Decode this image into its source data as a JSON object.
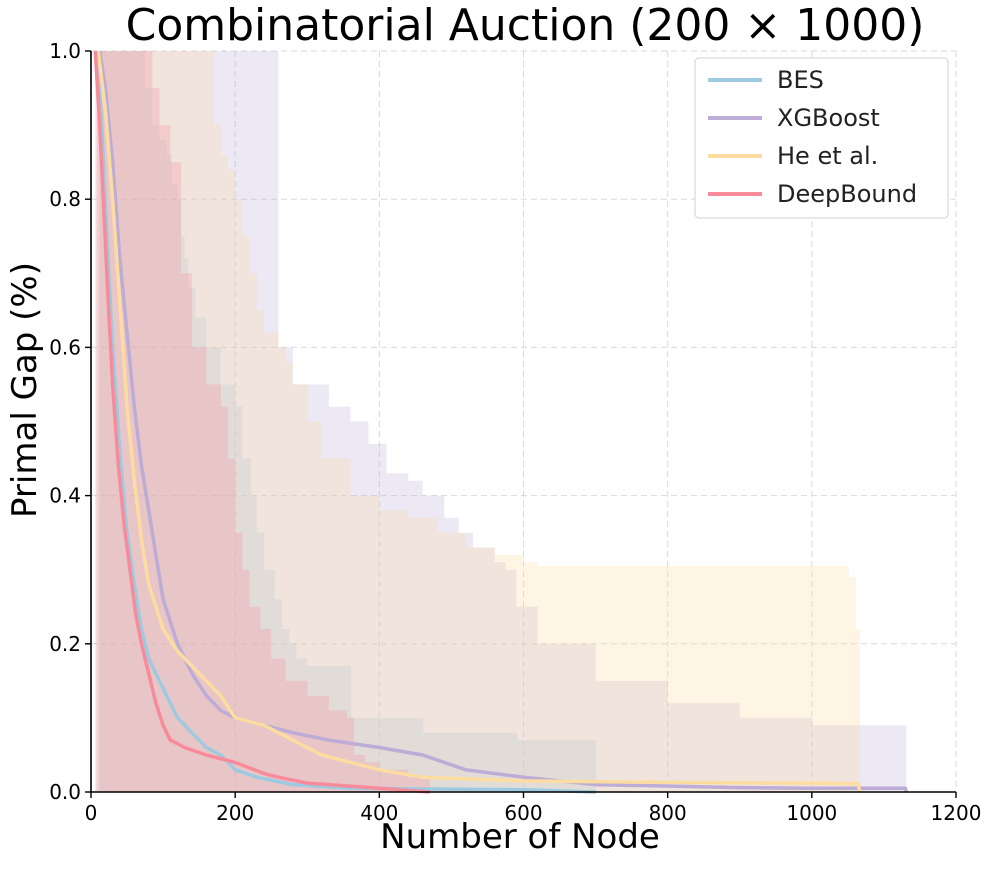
{
  "chart_data": {
    "type": "line",
    "title": "Combinatorial Auction (200 × 1000)",
    "xlabel": "Number of Node",
    "ylabel": "Primal Gap (%)",
    "xlim": [
      0,
      1200
    ],
    "ylim": [
      0,
      1.0
    ],
    "x_ticks": [
      0,
      200,
      400,
      600,
      800,
      1000,
      1200
    ],
    "x_tick_labels": [
      "0",
      "200",
      "400",
      "600",
      "800",
      "1000",
      "1200"
    ],
    "y_ticks": [
      0.0,
      0.2,
      0.4,
      0.6,
      0.8,
      1.0
    ],
    "y_tick_labels": [
      "0.0",
      "0.2",
      "0.4",
      "0.6",
      "0.8",
      "1.0"
    ],
    "grid": true,
    "legend_position": "top-right",
    "series": [
      {
        "name": "BES",
        "color": "#9ecae1",
        "line": [
          [
            8,
            1.0
          ],
          [
            15,
            0.9
          ],
          [
            22,
            0.75
          ],
          [
            30,
            0.6
          ],
          [
            40,
            0.46
          ],
          [
            50,
            0.35
          ],
          [
            60,
            0.28
          ],
          [
            70,
            0.22
          ],
          [
            80,
            0.18
          ],
          [
            100,
            0.14
          ],
          [
            120,
            0.1
          ],
          [
            140,
            0.08
          ],
          [
            160,
            0.06
          ],
          [
            180,
            0.05
          ],
          [
            200,
            0.03
          ],
          [
            230,
            0.02
          ],
          [
            280,
            0.01
          ],
          [
            360,
            0.005
          ],
          [
            600,
            0.003
          ],
          [
            700,
            0.0
          ]
        ],
        "band_upper": [
          [
            8,
            1.0
          ],
          [
            70,
            1.0
          ],
          [
            75,
            0.95
          ],
          [
            85,
            0.9
          ],
          [
            95,
            0.88
          ],
          [
            105,
            0.86
          ],
          [
            112,
            0.82
          ],
          [
            120,
            0.8
          ],
          [
            125,
            0.75
          ],
          [
            130,
            0.72
          ],
          [
            135,
            0.68
          ],
          [
            145,
            0.64
          ],
          [
            160,
            0.6
          ],
          [
            180,
            0.55
          ],
          [
            200,
            0.52
          ],
          [
            210,
            0.45
          ],
          [
            222,
            0.4
          ],
          [
            230,
            0.35
          ],
          [
            240,
            0.3
          ],
          [
            255,
            0.26
          ],
          [
            265,
            0.22
          ],
          [
            275,
            0.2
          ],
          [
            285,
            0.18
          ],
          [
            300,
            0.17
          ],
          [
            360,
            0.17
          ],
          [
            361,
            0.1
          ],
          [
            460,
            0.1
          ],
          [
            461,
            0.08
          ],
          [
            590,
            0.08
          ],
          [
            591,
            0.07
          ],
          [
            700,
            0.07
          ],
          [
            701,
            0.0
          ]
        ],
        "band_lower": [
          [
            8,
            0.0
          ],
          [
            700,
            0.0
          ]
        ]
      },
      {
        "name": "XGBoost",
        "color": "#bcacd6",
        "line": [
          [
            12,
            1.0
          ],
          [
            20,
            0.95
          ],
          [
            30,
            0.85
          ],
          [
            40,
            0.72
          ],
          [
            50,
            0.62
          ],
          [
            60,
            0.52
          ],
          [
            70,
            0.44
          ],
          [
            80,
            0.38
          ],
          [
            90,
            0.32
          ],
          [
            100,
            0.26
          ],
          [
            120,
            0.2
          ],
          [
            140,
            0.16
          ],
          [
            160,
            0.13
          ],
          [
            180,
            0.11
          ],
          [
            200,
            0.1
          ],
          [
            240,
            0.09
          ],
          [
            280,
            0.08
          ],
          [
            330,
            0.07
          ],
          [
            400,
            0.06
          ],
          [
            460,
            0.05
          ],
          [
            520,
            0.03
          ],
          [
            600,
            0.02
          ],
          [
            700,
            0.01
          ],
          [
            900,
            0.006
          ],
          [
            1000,
            0.005
          ],
          [
            1130,
            0.005
          ],
          [
            1131,
            0.0
          ]
        ],
        "band_upper": [
          [
            12,
            1.0
          ],
          [
            240,
            1.0
          ],
          [
            260,
            0.6
          ],
          [
            280,
            0.55
          ],
          [
            330,
            0.52
          ],
          [
            360,
            0.5
          ],
          [
            385,
            0.47
          ],
          [
            410,
            0.43
          ],
          [
            440,
            0.42
          ],
          [
            460,
            0.4
          ],
          [
            490,
            0.37
          ],
          [
            510,
            0.35
          ],
          [
            530,
            0.33
          ],
          [
            560,
            0.31
          ],
          [
            575,
            0.3
          ],
          [
            590,
            0.25
          ],
          [
            620,
            0.2
          ],
          [
            700,
            0.15
          ],
          [
            800,
            0.12
          ],
          [
            900,
            0.1
          ],
          [
            1000,
            0.09
          ],
          [
            1130,
            0.09
          ],
          [
            1131,
            0.0
          ]
        ],
        "band_lower": [
          [
            12,
            0.0
          ],
          [
            1131,
            0.0
          ]
        ]
      },
      {
        "name": "He et al.",
        "color": "#fddca2",
        "line": [
          [
            10,
            1.0
          ],
          [
            20,
            0.92
          ],
          [
            30,
            0.8
          ],
          [
            40,
            0.66
          ],
          [
            50,
            0.52
          ],
          [
            60,
            0.42
          ],
          [
            70,
            0.34
          ],
          [
            80,
            0.28
          ],
          [
            100,
            0.22
          ],
          [
            120,
            0.19
          ],
          [
            140,
            0.17
          ],
          [
            160,
            0.15
          ],
          [
            180,
            0.13
          ],
          [
            200,
            0.1
          ],
          [
            240,
            0.09
          ],
          [
            280,
            0.07
          ],
          [
            320,
            0.05
          ],
          [
            360,
            0.04
          ],
          [
            400,
            0.03
          ],
          [
            460,
            0.02
          ],
          [
            600,
            0.015
          ],
          [
            800,
            0.013
          ],
          [
            1000,
            0.012
          ],
          [
            1065,
            0.011
          ],
          [
            1066,
            0.0
          ]
        ],
        "band_upper": [
          [
            10,
            1.0
          ],
          [
            160,
            1.0
          ],
          [
            170,
            0.9
          ],
          [
            180,
            0.86
          ],
          [
            190,
            0.84
          ],
          [
            200,
            0.8
          ],
          [
            210,
            0.75
          ],
          [
            220,
            0.7
          ],
          [
            230,
            0.65
          ],
          [
            240,
            0.62
          ],
          [
            260,
            0.6
          ],
          [
            270,
            0.58
          ],
          [
            280,
            0.55
          ],
          [
            300,
            0.5
          ],
          [
            320,
            0.45
          ],
          [
            360,
            0.4
          ],
          [
            400,
            0.38
          ],
          [
            440,
            0.37
          ],
          [
            480,
            0.35
          ],
          [
            520,
            0.33
          ],
          [
            560,
            0.32
          ],
          [
            600,
            0.31
          ],
          [
            620,
            0.305
          ],
          [
            1050,
            0.305
          ],
          [
            1051,
            0.29
          ],
          [
            1060,
            0.29
          ],
          [
            1061,
            0.22
          ],
          [
            1066,
            0.22
          ],
          [
            1067,
            0.0
          ]
        ],
        "band_lower": [
          [
            10,
            0.0
          ],
          [
            1067,
            0.0
          ]
        ]
      },
      {
        "name": "DeepBound",
        "color": "#f88b9a",
        "line": [
          [
            6,
            1.0
          ],
          [
            12,
            0.9
          ],
          [
            18,
            0.78
          ],
          [
            24,
            0.66
          ],
          [
            30,
            0.55
          ],
          [
            38,
            0.44
          ],
          [
            46,
            0.36
          ],
          [
            54,
            0.3
          ],
          [
            62,
            0.24
          ],
          [
            70,
            0.2
          ],
          [
            80,
            0.16
          ],
          [
            90,
            0.12
          ],
          [
            100,
            0.09
          ],
          [
            110,
            0.07
          ],
          [
            130,
            0.06
          ],
          [
            160,
            0.05
          ],
          [
            200,
            0.04
          ],
          [
            240,
            0.025
          ],
          [
            260,
            0.02
          ],
          [
            300,
            0.012
          ],
          [
            400,
            0.005
          ],
          [
            470,
            0.0
          ]
        ],
        "band_upper": [
          [
            6,
            1.0
          ],
          [
            80,
            1.0
          ],
          [
            85,
            0.95
          ],
          [
            95,
            0.9
          ],
          [
            110,
            0.85
          ],
          [
            125,
            0.7
          ],
          [
            140,
            0.6
          ],
          [
            160,
            0.55
          ],
          [
            180,
            0.52
          ],
          [
            190,
            0.45
          ],
          [
            200,
            0.35
          ],
          [
            210,
            0.3
          ],
          [
            220,
            0.25
          ],
          [
            235,
            0.22
          ],
          [
            250,
            0.18
          ],
          [
            270,
            0.15
          ],
          [
            300,
            0.13
          ],
          [
            330,
            0.11
          ],
          [
            355,
            0.1
          ],
          [
            365,
            0.05
          ],
          [
            380,
            0.04
          ],
          [
            400,
            0.03
          ],
          [
            440,
            0.02
          ],
          [
            470,
            0.01
          ],
          [
            471,
            0.0
          ]
        ],
        "band_lower": [
          [
            6,
            0.0
          ],
          [
            471,
            0.0
          ]
        ]
      }
    ]
  }
}
